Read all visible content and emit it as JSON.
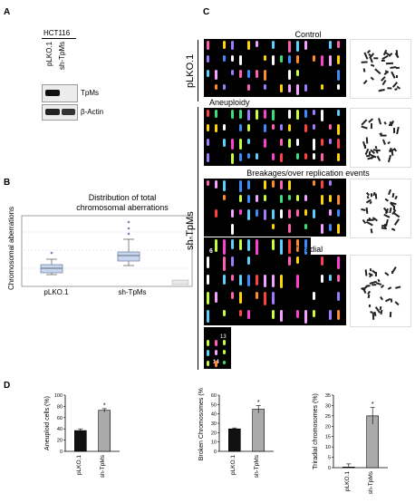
{
  "panels": {
    "a": "A",
    "b": "B",
    "c": "C",
    "d": "D"
  },
  "western": {
    "cell_line": "HCT116",
    "lanes": [
      "pLKO.1",
      "sh-TpMs"
    ],
    "bands": [
      "TpMs",
      "β-Actin"
    ]
  },
  "boxplot": {
    "title_line1": "Distribution of total",
    "title_line2": "chromosomal aberrations",
    "ylabel": "Chromosomal aberrations",
    "categories": [
      "pLKO.1",
      "sh-TpMs"
    ]
  },
  "karyotype": {
    "group_control": "pLKO.1",
    "group_knockdown": "sh-TpMs",
    "titles": [
      "Control",
      "Aneuploidy",
      "Breakages/over replication events",
      "Triradial"
    ],
    "inset_breakage_label": "6",
    "inset_triradial_labels": [
      "13",
      "14"
    ]
  },
  "chart_data": [
    {
      "type": "bar",
      "categories": [
        "pLKO.1",
        "sh-TpMs"
      ],
      "values": [
        37,
        73
      ],
      "errors": [
        3,
        3
      ],
      "ylabel": "Aneuploid cells (%)",
      "ylim": [
        0,
        100
      ],
      "yticks": [
        0,
        20,
        40,
        60,
        80,
        100
      ],
      "significance": [
        "",
        "*"
      ],
      "colors": [
        "#111111",
        "#aaaaaa"
      ]
    },
    {
      "type": "bar",
      "categories": [
        "pLKO.1",
        "sh-TpMs"
      ],
      "values": [
        24,
        45
      ],
      "errors": [
        1,
        4
      ],
      "ylabel": "Broken Chromosomes (%)",
      "ylim": [
        0,
        60
      ],
      "yticks": [
        0,
        10,
        20,
        30,
        40,
        50,
        60
      ],
      "significance": [
        "",
        "*"
      ],
      "colors": [
        "#111111",
        "#aaaaaa"
      ]
    },
    {
      "type": "bar",
      "categories": [
        "pLKO.1",
        "sh-TpMs"
      ],
      "values": [
        0.3,
        25
      ],
      "errors": [
        1.5,
        4
      ],
      "ylabel": "Triradial chromosomes (%)",
      "ylim": [
        0,
        35
      ],
      "yticks": [
        0,
        5,
        10,
        15,
        20,
        25,
        30,
        35
      ],
      "significance": [
        "",
        "*"
      ],
      "colors": [
        "#111111",
        "#aaaaaa"
      ]
    }
  ]
}
